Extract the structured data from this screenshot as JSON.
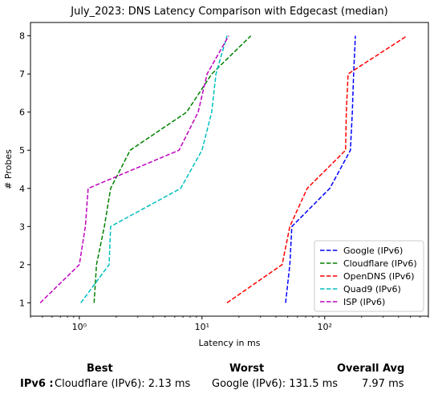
{
  "chart_data": {
    "type": "line",
    "title": "July_2023: DNS Latency Comparison with Edgecast (median)",
    "xlabel": "Latency in ms",
    "ylabel": "# Probes",
    "xscale": "log",
    "xlim": [
      0.4,
      700
    ],
    "ylim": [
      0.65,
      8.35
    ],
    "x_ticks": [
      {
        "value": 1,
        "label": "10⁰"
      },
      {
        "value": 10,
        "label": "10¹"
      },
      {
        "value": 100,
        "label": "10²"
      }
    ],
    "y_ticks": [
      1,
      2,
      3,
      4,
      5,
      6,
      7,
      8
    ],
    "grid": false,
    "legend": "bottom-right",
    "series": [
      {
        "name": "Google (IPv6)",
        "color": "#0000ff",
        "x": [
          48,
          52,
          54,
          110,
          162,
          168,
          172,
          178
        ],
        "y": [
          1,
          2,
          3,
          4,
          5,
          6,
          7,
          8
        ]
      },
      {
        "name": "Cloudflare (IPv6)",
        "color": "#008000",
        "x": [
          1.32,
          1.38,
          1.6,
          1.8,
          2.6,
          7.5,
          12,
          25
        ],
        "y": [
          1,
          2,
          3,
          4,
          5,
          6,
          7,
          8
        ]
      },
      {
        "name": "OpenDNS (IPv6)",
        "color": "#ff0000",
        "x": [
          16,
          45,
          52,
          72,
          148,
          150,
          155,
          470
        ],
        "y": [
          1,
          2,
          3,
          4,
          5,
          6,
          7,
          8
        ]
      },
      {
        "name": "Quad9 (IPv6)",
        "color": "#00bfbf",
        "x": [
          1.03,
          1.75,
          1.8,
          6.7,
          10,
          12,
          13,
          16
        ],
        "y": [
          1,
          2,
          3,
          4,
          5,
          6,
          7,
          8
        ]
      },
      {
        "name": "ISP (IPv6)",
        "color": "#bf00bf",
        "x": [
          0.48,
          1.0,
          1.12,
          1.18,
          6.5,
          9.3,
          11,
          16.5
        ],
        "y": [
          1,
          2,
          3,
          4,
          5,
          6,
          7,
          8
        ]
      }
    ]
  },
  "summary": {
    "headers": {
      "best": "Best",
      "worst": "Worst",
      "overall": "Overall Avg"
    },
    "row": {
      "label": "IPv6 :",
      "best": "Cloudflare (IPv6): 2.13 ms",
      "worst": "Google (IPv6): 131.5 ms",
      "overall": "7.97 ms"
    }
  }
}
